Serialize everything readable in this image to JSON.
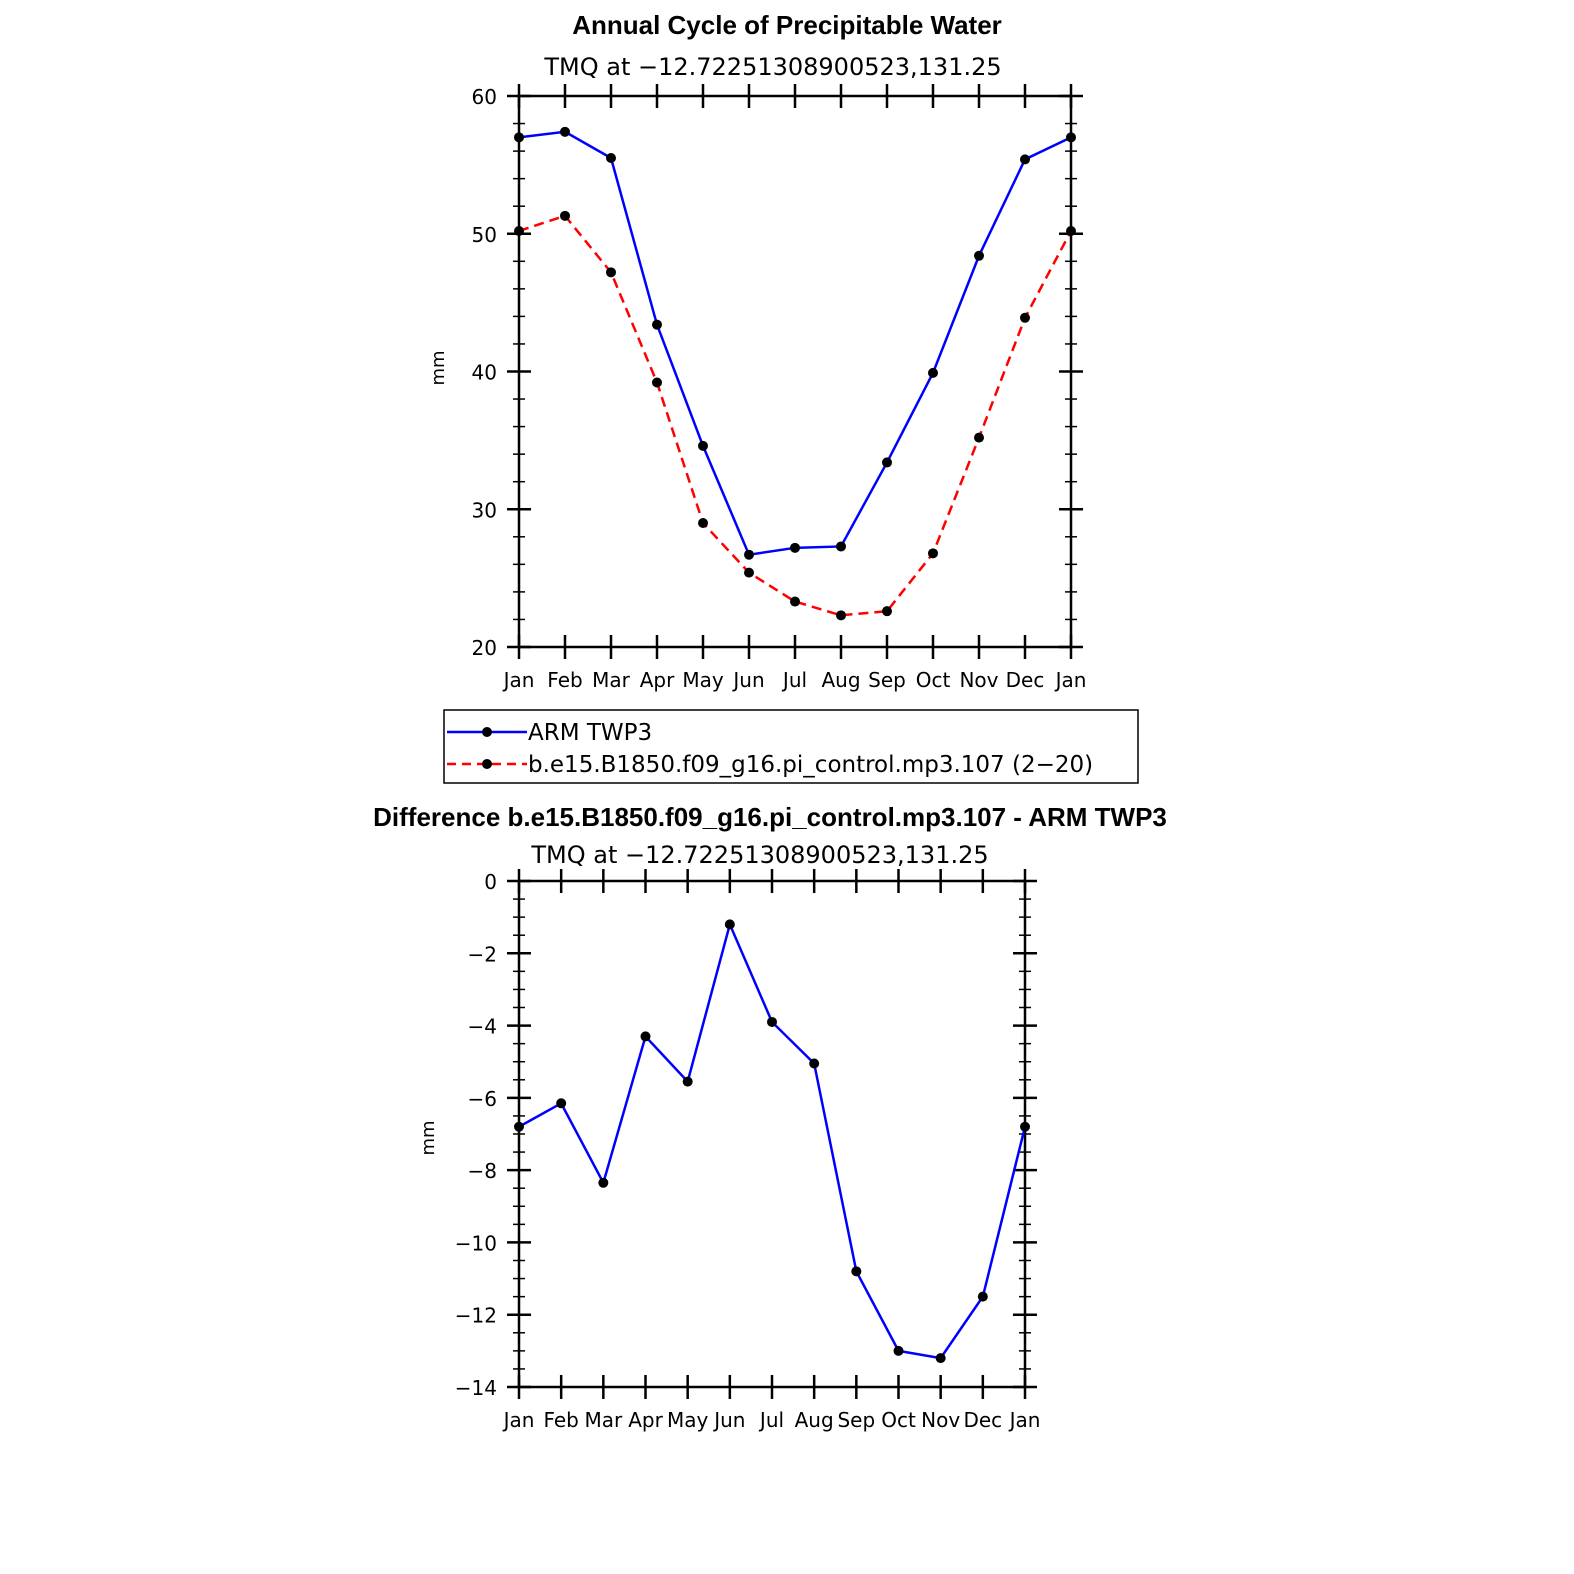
{
  "chart_data": [
    {
      "type": "line",
      "title": "Annual Cycle of Precipitable Water",
      "subtitle": "TMQ at −12.72251308900523,131.25",
      "ylabel": "mm",
      "ylim": [
        20,
        60
      ],
      "yticks": [
        "20",
        "30",
        "40",
        "50",
        "60"
      ],
      "categories": [
        "Jan",
        "Feb",
        "Mar",
        "Apr",
        "May",
        "Jun",
        "Jul",
        "Aug",
        "Sep",
        "Oct",
        "Nov",
        "Dec",
        "Jan"
      ],
      "series": [
        {
          "name": "ARM TWP3",
          "color": "#0000ff",
          "dash": "solid",
          "values": [
            57.0,
            57.4,
            55.5,
            43.4,
            34.6,
            26.7,
            27.2,
            27.3,
            33.4,
            39.9,
            48.4,
            55.4,
            57.0
          ]
        },
        {
          "name": "b.e15.B1850.f09_g16.pi_control.mp3.107 (2−20)",
          "color": "#ff0000",
          "dash": "dashed",
          "values": [
            50.2,
            51.3,
            47.2,
            39.2,
            29.0,
            25.4,
            23.3,
            22.3,
            22.6,
            26.8,
            35.2,
            43.9,
            50.2
          ]
        }
      ],
      "legend": "below"
    },
    {
      "type": "line",
      "title": "Difference b.e15.B1850.f09_g16.pi_control.mp3.107 - ARM TWP3",
      "subtitle": "TMQ at −12.72251308900523,131.25",
      "ylabel": "mm",
      "ylim": [
        -14,
        0
      ],
      "yticks": [
        "0",
        "−2",
        "−4",
        "−6",
        "−8",
        "−10",
        "−12",
        "−14"
      ],
      "categories": [
        "Jan",
        "Feb",
        "Mar",
        "Apr",
        "May",
        "Jun",
        "Jul",
        "Aug",
        "Sep",
        "Oct",
        "Nov",
        "Dec",
        "Jan"
      ],
      "series": [
        {
          "color": "#0000ff",
          "dash": "solid",
          "values": [
            -6.8,
            -6.15,
            -8.35,
            -4.3,
            -5.55,
            -1.2,
            -3.9,
            -5.05,
            -10.8,
            -13.0,
            -13.2,
            -11.5,
            -6.8
          ]
        }
      ]
    }
  ]
}
